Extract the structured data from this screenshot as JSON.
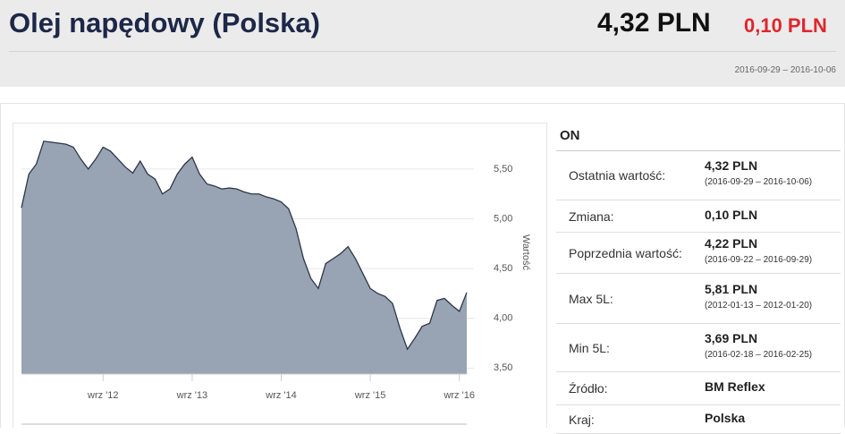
{
  "header": {
    "title": "Olej napędowy (Polska)",
    "price": "4,32 PLN",
    "change": "0,10 PLN",
    "period": "2016-09-29 – 2016-10-06"
  },
  "chart_data": {
    "type": "area",
    "y_label": "Wartość",
    "color": "#98a4b3",
    "line_color": "#2b3648",
    "x": [
      "2011-10",
      "2011-11",
      "2011-12",
      "2012-01",
      "2012-02",
      "2012-03",
      "2012-04",
      "2012-05",
      "2012-06",
      "2012-07",
      "2012-08",
      "2012-09",
      "2012-10",
      "2012-11",
      "2012-12",
      "2013-01",
      "2013-02",
      "2013-03",
      "2013-04",
      "2013-05",
      "2013-06",
      "2013-07",
      "2013-08",
      "2013-09",
      "2013-10",
      "2013-11",
      "2013-12",
      "2014-01",
      "2014-02",
      "2014-03",
      "2014-04",
      "2014-05",
      "2014-06",
      "2014-07",
      "2014-08",
      "2014-09",
      "2014-10",
      "2014-11",
      "2014-12",
      "2015-01",
      "2015-02",
      "2015-03",
      "2015-04",
      "2015-05",
      "2015-06",
      "2015-07",
      "2015-08",
      "2015-09",
      "2015-10",
      "2015-11",
      "2015-12",
      "2016-01",
      "2016-02",
      "2016-03",
      "2016-04",
      "2016-05",
      "2016-06",
      "2016-07",
      "2016-08",
      "2016-09",
      "2016-10"
    ],
    "values": [
      5.11,
      5.45,
      5.55,
      5.78,
      5.77,
      5.76,
      5.75,
      5.72,
      5.6,
      5.5,
      5.6,
      5.72,
      5.68,
      5.6,
      5.52,
      5.46,
      5.58,
      5.45,
      5.4,
      5.25,
      5.3,
      5.45,
      5.55,
      5.62,
      5.45,
      5.35,
      5.33,
      5.3,
      5.31,
      5.3,
      5.27,
      5.25,
      5.25,
      5.22,
      5.2,
      5.17,
      5.1,
      4.9,
      4.6,
      4.4,
      4.3,
      4.55,
      4.6,
      4.65,
      4.72,
      4.6,
      4.45,
      4.3,
      4.25,
      4.22,
      4.15,
      3.9,
      3.69,
      3.8,
      3.92,
      3.95,
      4.18,
      4.2,
      4.13,
      4.07,
      4.26
    ],
    "ylim": [
      3.44,
      5.94
    ],
    "yticks": [
      {
        "value": 3.5,
        "label": "3,50"
      },
      {
        "value": 4,
        "label": "4,00"
      },
      {
        "value": 4.5,
        "label": "4,50"
      },
      {
        "value": 5,
        "label": "5,00"
      },
      {
        "value": 5.5,
        "label": "5,50"
      }
    ],
    "xticks": [
      {
        "value": "2012-09",
        "label": "wrz '12"
      },
      {
        "value": "2013-09",
        "label": "wrz '13"
      },
      {
        "value": "2014-09",
        "label": "wrz '14"
      },
      {
        "value": "2015-09",
        "label": "wrz '15"
      },
      {
        "value": "2016-09",
        "label": "wrz '16"
      }
    ],
    "grid": true
  },
  "table": {
    "title": "ON",
    "rows": [
      {
        "label": "Ostatnia wartość:",
        "value": "4,32 PLN",
        "sub": "(2016-09-29 – 2016-10-06)"
      },
      {
        "label": "Zmiana:",
        "value": "0,10 PLN"
      },
      {
        "label": "Poprzednia wartość:",
        "value": "4,22 PLN",
        "sub": "(2016-09-22 – 2016-09-29)"
      },
      {
        "label": "Max 5L:",
        "value": "5,81 PLN",
        "sub": "(2012-01-13 – 2012-01-20)"
      },
      {
        "label": "Min 5L:",
        "value": "3,69 PLN",
        "sub": "(2016-02-18 – 2016-02-25)"
      },
      {
        "label": "Źródło:",
        "value": "BM Reflex"
      },
      {
        "label": "Kraj:",
        "value": "Polska"
      }
    ]
  }
}
